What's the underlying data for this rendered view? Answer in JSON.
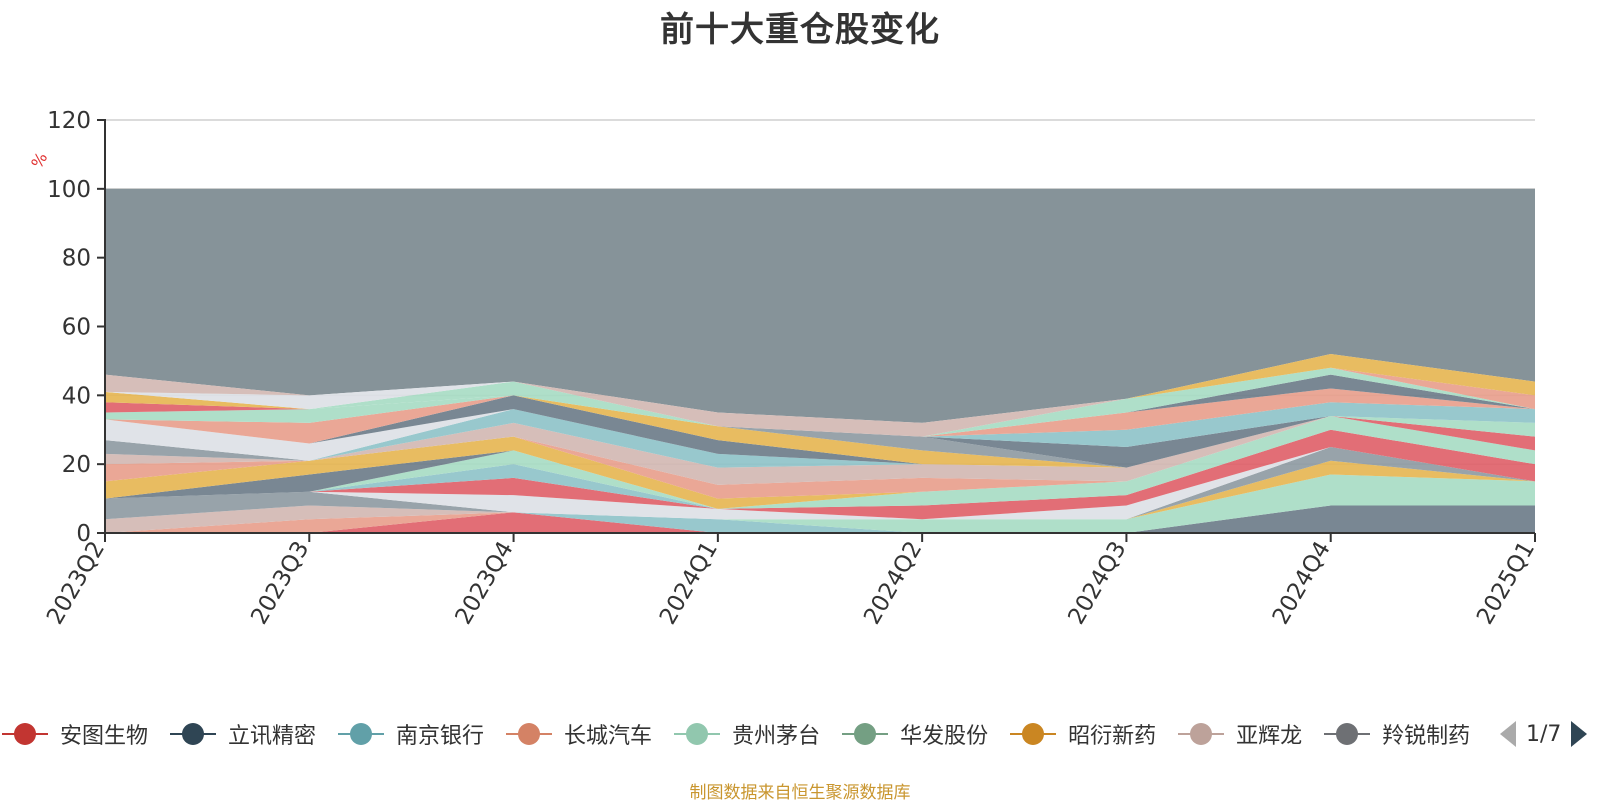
{
  "chart_data": {
    "type": "area",
    "title": "前十大重仓股变化",
    "ylabel": "%",
    "ylim": [
      0,
      120
    ],
    "yticks": [
      0,
      20,
      40,
      60,
      80,
      100,
      120
    ],
    "categories": [
      "2023Q2",
      "2023Q3",
      "2023Q4",
      "2024Q1",
      "2024Q2",
      "2024Q3",
      "2024Q4",
      "2025Q1"
    ],
    "stack_total": [
      100,
      100,
      100,
      100,
      100,
      100,
      100,
      100
    ],
    "rest_color": "#869399",
    "bands": [
      {
        "color": "#6e7d8a",
        "values": [
          0,
          0,
          0,
          0,
          0,
          0,
          8,
          8
        ]
      },
      {
        "color": "#e0626a",
        "values": [
          0,
          0,
          6,
          0,
          0,
          0,
          0,
          0
        ]
      },
      {
        "color": "#8fc3c9",
        "values": [
          0,
          0,
          0,
          4,
          0,
          0,
          0,
          0
        ]
      },
      {
        "color": "#a8dcc4",
        "values": [
          0,
          0,
          0,
          0,
          4,
          4,
          9,
          7
        ]
      },
      {
        "color": "#e6b654",
        "values": [
          0,
          0,
          0,
          0,
          0,
          0,
          4,
          0
        ]
      },
      {
        "color": "#e8a08d",
        "values": [
          0,
          4,
          0,
          0,
          0,
          0,
          0,
          0
        ]
      },
      {
        "color": "#d3b9b3",
        "values": [
          4,
          4,
          0,
          0,
          0,
          0,
          0,
          0
        ]
      },
      {
        "color": "#8f9ba3",
        "values": [
          6,
          4,
          0,
          0,
          0,
          0,
          4,
          0
        ]
      },
      {
        "color": "#dde1e6",
        "values": [
          0,
          0,
          5,
          3,
          0,
          4,
          0,
          0
        ]
      },
      {
        "color": "#e0626a",
        "values": [
          0,
          0,
          5,
          0,
          4,
          3,
          5,
          5
        ]
      },
      {
        "color": "#8fc3c9",
        "values": [
          0,
          0,
          4,
          0,
          0,
          0,
          0,
          0
        ]
      },
      {
        "color": "#a8dcc4",
        "values": [
          0,
          0,
          4,
          0,
          4,
          4,
          4,
          4
        ]
      },
      {
        "color": "#6e7d8a",
        "values": [
          0,
          5,
          0,
          0,
          0,
          0,
          0,
          0
        ]
      },
      {
        "color": "#e6b654",
        "values": [
          5,
          4,
          4,
          3,
          0,
          0,
          0,
          0
        ]
      },
      {
        "color": "#e8a08d",
        "values": [
          5,
          0,
          0,
          4,
          4,
          0,
          0,
          0
        ]
      },
      {
        "color": "#d3b9b3",
        "values": [
          3,
          0,
          4,
          5,
          4,
          4,
          0,
          0
        ]
      },
      {
        "color": "#8f9ba3",
        "values": [
          4,
          0,
          0,
          0,
          0,
          0,
          0,
          0
        ]
      },
      {
        "color": "#e0626a",
        "values": [
          0,
          0,
          0,
          0,
          0,
          0,
          0,
          4
        ]
      },
      {
        "color": "#8fc3c9",
        "values": [
          0,
          0,
          4,
          4,
          0,
          0,
          0,
          0
        ]
      },
      {
        "color": "#dde1e6",
        "values": [
          6,
          5,
          0,
          0,
          0,
          0,
          0,
          0
        ]
      },
      {
        "color": "#6e7d8a",
        "values": [
          0,
          0,
          4,
          4,
          0,
          0,
          0,
          0
        ]
      },
      {
        "color": "#a8dcc4",
        "values": [
          0,
          0,
          0,
          0,
          0,
          0,
          0,
          4
        ]
      },
      {
        "color": "#e6b654",
        "values": [
          0,
          0,
          0,
          4,
          4,
          0,
          0,
          0
        ]
      },
      {
        "color": "#e8a08d",
        "values": [
          0,
          6,
          0,
          0,
          0,
          0,
          0,
          0
        ]
      },
      {
        "color": "#8f9ba3",
        "values": [
          0,
          0,
          0,
          0,
          4,
          0,
          0,
          0
        ]
      },
      {
        "color": "#6e7d8a",
        "values": [
          0,
          0,
          0,
          0,
          0,
          6,
          0,
          0
        ]
      },
      {
        "color": "#8fc3c9",
        "values": [
          0,
          0,
          0,
          0,
          0,
          5,
          4,
          4
        ]
      },
      {
        "color": "#a8dcc4",
        "values": [
          2,
          4,
          0,
          0,
          0,
          0,
          0,
          0
        ]
      },
      {
        "color": "#e8a08d",
        "values": [
          0,
          0,
          0,
          0,
          0,
          5,
          4,
          0
        ]
      },
      {
        "color": "#6e7d8a",
        "values": [
          0,
          0,
          0,
          0,
          0,
          0,
          4,
          0
        ]
      },
      {
        "color": "#a8dcc4",
        "values": [
          0,
          0,
          4,
          0,
          0,
          4,
          2,
          0
        ]
      },
      {
        "color": "#e0626a",
        "values": [
          3,
          0,
          0,
          0,
          0,
          0,
          0,
          0
        ]
      },
      {
        "color": "#e6b654",
        "values": [
          3,
          0,
          0,
          0,
          0,
          0,
          0,
          0
        ]
      },
      {
        "color": "#dde1e6",
        "values": [
          0,
          4,
          0,
          0,
          0,
          0,
          0,
          0
        ]
      },
      {
        "color": "#d3b9b3",
        "values": [
          5,
          0,
          0,
          4,
          4,
          0,
          0,
          0
        ]
      },
      {
        "color": "#e8a08d",
        "values": [
          0,
          0,
          0,
          0,
          0,
          0,
          0,
          4
        ]
      },
      {
        "color": "#e6b654",
        "values": [
          0,
          0,
          0,
          0,
          0,
          0,
          4,
          4
        ]
      }
    ],
    "legend": [
      {
        "name": "安图生物",
        "color": "#c23531"
      },
      {
        "name": "立讯精密",
        "color": "#2f4554"
      },
      {
        "name": "南京银行",
        "color": "#61a0a8"
      },
      {
        "name": "长城汽车",
        "color": "#d48265"
      },
      {
        "name": "贵州茅台",
        "color": "#91c7ae"
      },
      {
        "name": "华发股份",
        "color": "#749f83"
      },
      {
        "name": "昭衍新药",
        "color": "#ca8622"
      },
      {
        "name": "亚辉龙",
        "color": "#bda29a"
      },
      {
        "name": "羚锐制药",
        "color": "#6e7074"
      }
    ],
    "legend_page": "1/7"
  },
  "source_note": "制图数据来自恒生聚源数据库"
}
